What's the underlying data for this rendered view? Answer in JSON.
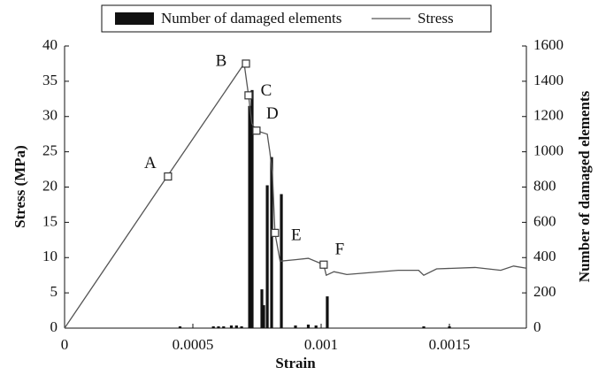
{
  "chart_data": {
    "type": "combo",
    "xlabel": "Strain",
    "ylabel": "Stress (MPa)",
    "y2label": "Number of damaged elements",
    "xlim": [
      0,
      0.0018
    ],
    "xticks": [
      0,
      0.0005,
      0.001,
      0.0015
    ],
    "ylim": [
      0,
      40
    ],
    "yticks": [
      0,
      5,
      10,
      15,
      20,
      25,
      30,
      35,
      40
    ],
    "y2lim": [
      0,
      1600
    ],
    "y2ticks": [
      0,
      200,
      400,
      600,
      800,
      1000,
      1200,
      1400,
      1600
    ],
    "legend": "top",
    "series": [
      {
        "name": "Number of damaged elements",
        "type": "bar",
        "axis": "y2",
        "color": "#111111",
        "x": [
          0.00045,
          0.00058,
          0.0006,
          0.00062,
          0.00065,
          0.00067,
          0.00069,
          0.000721,
          0.000731,
          0.000769,
          0.000776,
          0.00079,
          0.000807,
          0.000845,
          0.0009,
          0.00095,
          0.00098,
          0.001024,
          0.0014,
          0.0015
        ],
        "values": [
          10,
          10,
          10,
          10,
          15,
          15,
          10,
          1260,
          1350,
          220,
          130,
          810,
          970,
          760,
          15,
          20,
          15,
          180,
          10,
          10
        ]
      },
      {
        "name": "Stress",
        "type": "line",
        "axis": "y",
        "color": "#555555",
        "x": [
          0,
          0.0004,
          0.0007,
          0.000717,
          0.00073,
          0.000748,
          0.00079,
          0.0008,
          0.00081,
          0.00082,
          0.00084,
          0.0009,
          0.00095,
          0.00101,
          0.00102,
          0.00105,
          0.0011,
          0.0013,
          0.00138,
          0.0014,
          0.00145,
          0.0016,
          0.0017,
          0.00175,
          0.0018
        ],
        "values": [
          0,
          21.5,
          37.5,
          33,
          29,
          28,
          27.5,
          25,
          22,
          13.5,
          9.5,
          9.7,
          9.9,
          9,
          7.5,
          8,
          7.6,
          8.2,
          8.2,
          7.5,
          8.4,
          8.6,
          8.2,
          8.8,
          8.5
        ]
      }
    ],
    "annotations": [
      {
        "label": "A",
        "x": 0.000403,
        "y": 21.5
      },
      {
        "label": "B",
        "x": 0.000707,
        "y": 37.5
      },
      {
        "label": "C",
        "x": 0.000717,
        "y": 33
      },
      {
        "label": "D",
        "x": 0.000748,
        "y": 28
      },
      {
        "label": "E",
        "x": 0.00082,
        "y": 13.5
      },
      {
        "label": "F",
        "x": 0.00101,
        "y": 9
      }
    ]
  }
}
